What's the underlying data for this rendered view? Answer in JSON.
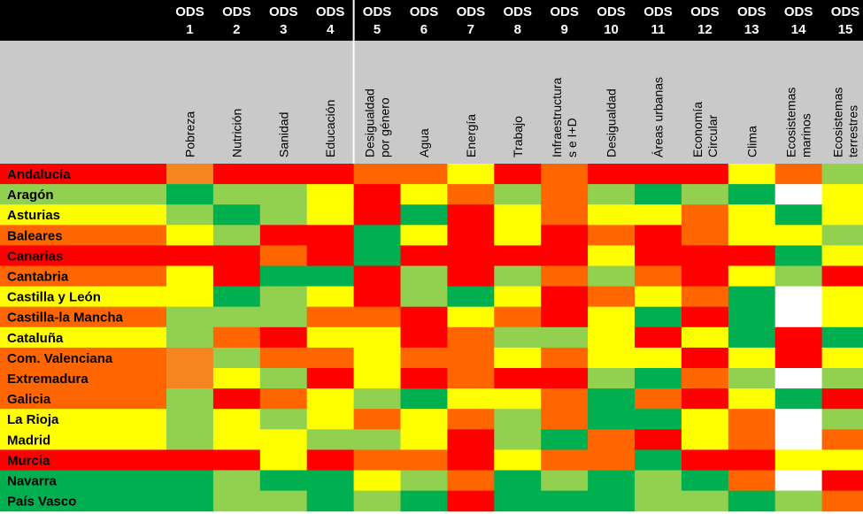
{
  "palette": {
    "R": "#ff0000",
    "O": "#ff6600",
    "P": "#f5861f",
    "Y": "#ffff00",
    "L": "#92d050",
    "G": "#00b050",
    "W": "#ffffff"
  },
  "columns": [
    {
      "code": "ODS",
      "number": "1",
      "label": [
        "Pobreza"
      ]
    },
    {
      "code": "ODS",
      "number": "2",
      "label": [
        "Nutrición"
      ]
    },
    {
      "code": "ODS",
      "number": "3",
      "label": [
        "Sanidad"
      ]
    },
    {
      "code": "ODS",
      "number": "4",
      "label": [
        "Educación"
      ]
    },
    {
      "code": "ODS",
      "number": "5",
      "label": [
        "Desigualdad",
        "por género"
      ]
    },
    {
      "code": "ODS",
      "number": "6",
      "label": [
        "Agua"
      ]
    },
    {
      "code": "ODS",
      "number": "7",
      "label": [
        "Energía"
      ]
    },
    {
      "code": "ODS",
      "number": "8",
      "label": [
        "Trabajo"
      ]
    },
    {
      "code": "ODS",
      "number": "9",
      "label": [
        "Infraestructura",
        "s e I+D"
      ]
    },
    {
      "code": "ODS",
      "number": "10",
      "label": [
        "Desigualdad"
      ]
    },
    {
      "code": "ODS",
      "number": "11",
      "label": [
        "Áreas urbanas"
      ]
    },
    {
      "code": "ODS",
      "number": "12",
      "label": [
        "Economía",
        "Circular"
      ]
    },
    {
      "code": "ODS",
      "number": "13",
      "label": [
        "Clima"
      ]
    },
    {
      "code": "ODS",
      "number": "14",
      "label": [
        "Ecosistemas",
        "marinos"
      ]
    },
    {
      "code": "ODS",
      "number": "15",
      "label": [
        "Ecosistemas",
        "terrestres"
      ]
    }
  ],
  "rows": [
    {
      "region": "Andalucía",
      "color": "R",
      "cells": [
        "P",
        "R",
        "R",
        "R",
        "O",
        "O",
        "Y",
        "R",
        "O",
        "R",
        "R",
        "R",
        "Y",
        "O",
        "L"
      ]
    },
    {
      "region": "Aragón",
      "color": "L",
      "cells": [
        "G",
        "L",
        "L",
        "Y",
        "R",
        "Y",
        "O",
        "L",
        "O",
        "L",
        "G",
        "L",
        "G",
        "W",
        "Y"
      ]
    },
    {
      "region": "Asturias",
      "color": "Y",
      "cells": [
        "L",
        "G",
        "L",
        "Y",
        "R",
        "G",
        "R",
        "Y",
        "O",
        "Y",
        "Y",
        "O",
        "Y",
        "G",
        "Y"
      ]
    },
    {
      "region": "Baleares",
      "color": "O",
      "cells": [
        "Y",
        "L",
        "R",
        "R",
        "G",
        "Y",
        "R",
        "Y",
        "R",
        "O",
        "R",
        "O",
        "Y",
        "Y",
        "L"
      ]
    },
    {
      "region": "Canarias",
      "color": "R",
      "cells": [
        "R",
        "R",
        "O",
        "R",
        "G",
        "R",
        "R",
        "R",
        "R",
        "Y",
        "R",
        "R",
        "R",
        "G",
        "Y"
      ]
    },
    {
      "region": "Cantabria",
      "color": "O",
      "cells": [
        "Y",
        "R",
        "G",
        "G",
        "R",
        "L",
        "R",
        "L",
        "O",
        "L",
        "O",
        "R",
        "Y",
        "L",
        "R"
      ]
    },
    {
      "region": "Castilla y León",
      "color": "Y",
      "cells": [
        "Y",
        "G",
        "L",
        "Y",
        "R",
        "L",
        "G",
        "Y",
        "R",
        "O",
        "Y",
        "O",
        "G",
        "W",
        "Y"
      ]
    },
    {
      "region": "Castilla-la Mancha",
      "color": "O",
      "cells": [
        "L",
        "L",
        "L",
        "O",
        "O",
        "R",
        "Y",
        "O",
        "R",
        "Y",
        "G",
        "R",
        "G",
        "W",
        "Y"
      ]
    },
    {
      "region": "Cataluña",
      "color": "Y",
      "cells": [
        "L",
        "O",
        "R",
        "Y",
        "Y",
        "R",
        "O",
        "L",
        "L",
        "Y",
        "R",
        "Y",
        "G",
        "R",
        "G"
      ]
    },
    {
      "region": "Com. Valenciana",
      "color": "O",
      "cells": [
        "P",
        "L",
        "O",
        "O",
        "Y",
        "O",
        "O",
        "Y",
        "O",
        "Y",
        "Y",
        "R",
        "Y",
        "R",
        "Y"
      ]
    },
    {
      "region": "Extremadura",
      "color": "O",
      "cells": [
        "P",
        "Y",
        "L",
        "R",
        "Y",
        "R",
        "O",
        "R",
        "R",
        "L",
        "G",
        "O",
        "L",
        "W",
        "L"
      ]
    },
    {
      "region": "Galicia",
      "color": "O",
      "cells": [
        "L",
        "R",
        "O",
        "Y",
        "L",
        "G",
        "Y",
        "Y",
        "O",
        "G",
        "O",
        "R",
        "Y",
        "G",
        "R"
      ]
    },
    {
      "region": "La Rioja",
      "color": "Y",
      "cells": [
        "L",
        "Y",
        "L",
        "Y",
        "O",
        "Y",
        "O",
        "L",
        "O",
        "G",
        "G",
        "Y",
        "O",
        "W",
        "L"
      ]
    },
    {
      "region": "Madrid",
      "color": "Y",
      "cells": [
        "L",
        "Y",
        "Y",
        "L",
        "L",
        "Y",
        "R",
        "L",
        "G",
        "O",
        "R",
        "Y",
        "O",
        "W",
        "O"
      ]
    },
    {
      "region": "Murcia",
      "color": "R",
      "cells": [
        "R",
        "R",
        "Y",
        "R",
        "O",
        "O",
        "R",
        "Y",
        "O",
        "O",
        "G",
        "R",
        "R",
        "Y",
        "Y"
      ]
    },
    {
      "region": "Navarra",
      "color": "G",
      "cells": [
        "G",
        "L",
        "G",
        "G",
        "Y",
        "L",
        "O",
        "G",
        "L",
        "G",
        "L",
        "G",
        "O",
        "W",
        "R"
      ]
    },
    {
      "region": "País Vasco",
      "color": "G",
      "cells": [
        "G",
        "L",
        "L",
        "G",
        "L",
        "G",
        "R",
        "G",
        "G",
        "G",
        "L",
        "L",
        "G",
        "L",
        "O"
      ]
    }
  ]
}
